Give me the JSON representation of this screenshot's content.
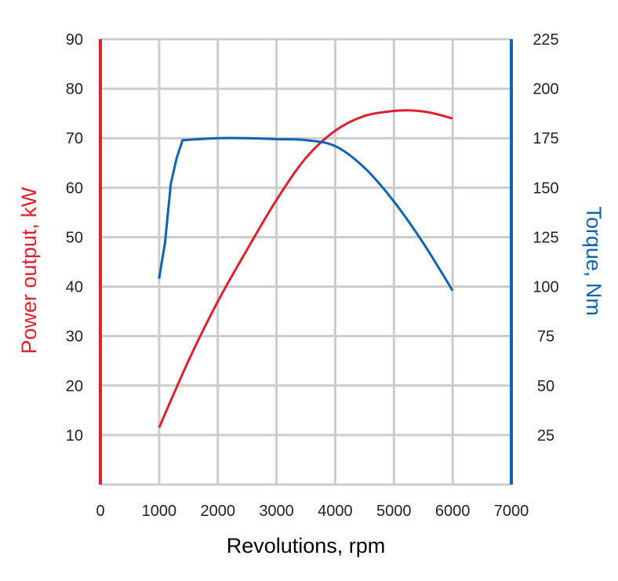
{
  "chart_data": {
    "type": "line",
    "xlabel": "Revolutions, rpm",
    "ylabel_left": "Power output, kW",
    "ylabel_right": "Torque, Nm",
    "xlim": [
      0,
      7000
    ],
    "ylim_left": [
      0,
      90
    ],
    "ylim_right": [
      0,
      225
    ],
    "x_ticks": [
      0,
      1000,
      2000,
      3000,
      4000,
      5000,
      6000,
      7000
    ],
    "y_ticks_left": [
      10,
      20,
      30,
      40,
      50,
      60,
      70,
      80,
      90
    ],
    "y_ticks_right": [
      25,
      50,
      75,
      100,
      125,
      150,
      175,
      200,
      225
    ],
    "grid": true,
    "colors": {
      "power": "#e0202f",
      "torque": "#0a64b0",
      "grid": "#cccccc"
    },
    "series": [
      {
        "axis": "left",
        "color": "#e0202f",
        "x": [
          1000,
          1500,
          2000,
          2500,
          3000,
          3500,
          4000,
          4500,
          5000,
          5300,
          5600,
          6000
        ],
        "y": [
          11.5,
          25,
          37,
          47.5,
          57.5,
          66,
          71.5,
          74.5,
          75.5,
          75.6,
          75.2,
          74
        ]
      },
      {
        "axis": "right",
        "color": "#0a64b0",
        "x": [
          1000,
          1100,
          1200,
          1300,
          1400,
          2000,
          2500,
          3000,
          3500,
          4000,
          4500,
          5000,
          5500,
          6000
        ],
        "y": [
          104,
          122,
          152,
          165,
          174,
          175,
          175,
          174.5,
          174,
          171,
          160,
          143,
          122,
          98
        ]
      }
    ]
  }
}
